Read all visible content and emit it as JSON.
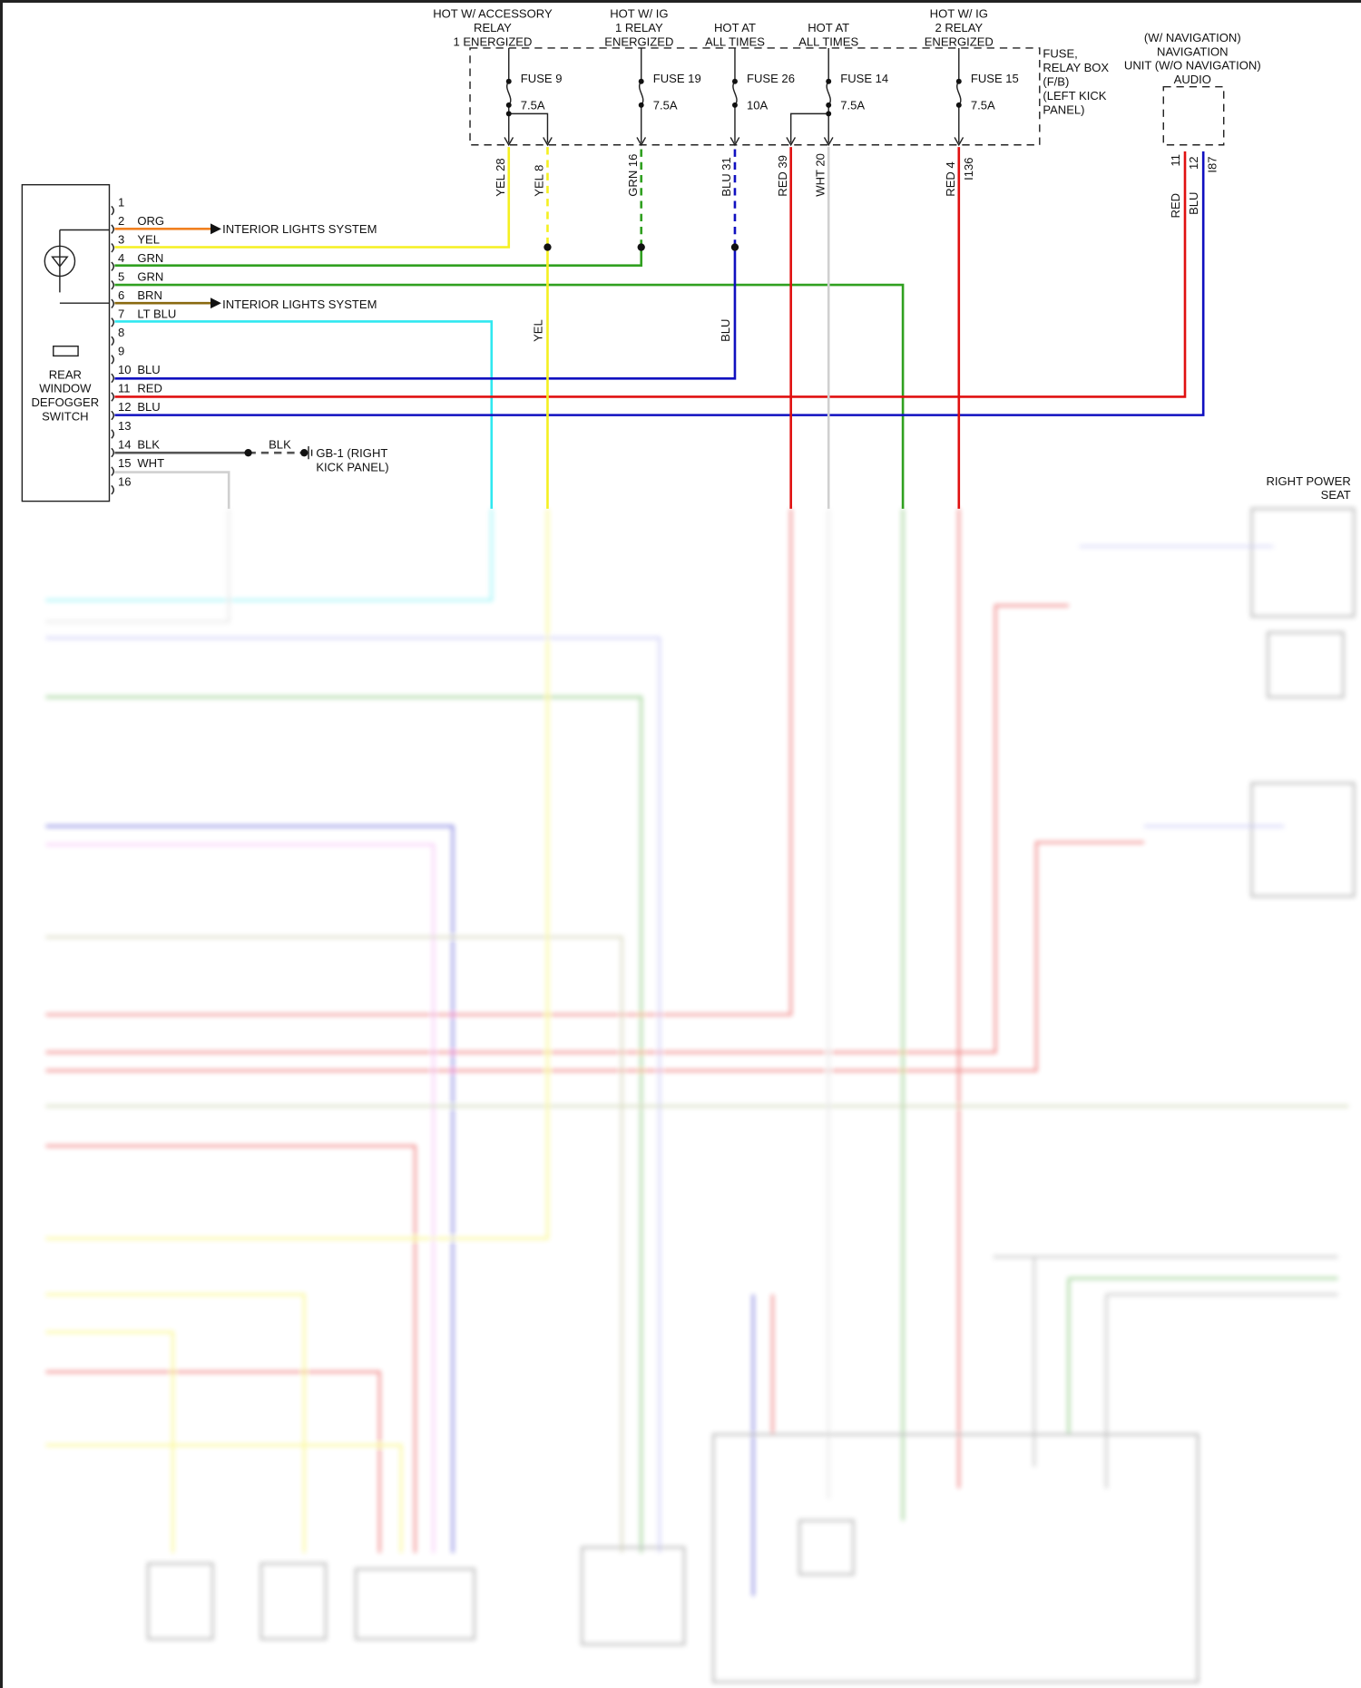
{
  "fuse_box": {
    "label": [
      "FUSE,",
      "RELAY BOX",
      "(F/B)",
      "(LEFT KICK",
      "PANEL)"
    ],
    "sources": [
      {
        "lines": [
          "HOT W/ ACCESSORY",
          "RELAY",
          "1 ENERGIZED"
        ],
        "fuse": "FUSE 9",
        "rating": "7.5A"
      },
      {
        "lines": [
          "HOT W/ IG",
          "1 RELAY",
          "ENERGIZED"
        ],
        "fuse": "FUSE 19",
        "rating": "7.5A"
      },
      {
        "lines": [
          "HOT AT",
          "ALL TIMES"
        ],
        "fuse": "FUSE 26",
        "rating": "10A"
      },
      {
        "lines": [
          "HOT AT",
          "ALL TIMES"
        ],
        "fuse": "FUSE 14",
        "rating": "7.5A"
      },
      {
        "lines": [
          "HOT W/ IG",
          "2 RELAY",
          "ENERGIZED"
        ],
        "fuse": "FUSE 15",
        "rating": "7.5A"
      }
    ],
    "pins": [
      "YEL 28",
      "YEL  8",
      "GRN 16",
      "BLU 31",
      "RED 39",
      "WHT 20",
      "RED  4"
    ],
    "connector": "I136"
  },
  "nav_unit": {
    "lines": [
      "(W/ NAVIGATION)",
      "NAVIGATION",
      "UNIT (W/O NAVIGATION)",
      "AUDIO"
    ],
    "pins": [
      "11",
      "12"
    ],
    "connector": "I87",
    "wire_colors": [
      "RED",
      "BLU"
    ]
  },
  "switch": {
    "name": [
      "REAR",
      "WINDOW",
      "DEFOGGER",
      "SWITCH"
    ],
    "pins": [
      {
        "n": "1",
        "c": ""
      },
      {
        "n": "2",
        "c": "ORG"
      },
      {
        "n": "3",
        "c": "YEL"
      },
      {
        "n": "4",
        "c": "GRN"
      },
      {
        "n": "5",
        "c": "GRN"
      },
      {
        "n": "6",
        "c": "BRN"
      },
      {
        "n": "7",
        "c": "LT BLU"
      },
      {
        "n": "8",
        "c": ""
      },
      {
        "n": "9",
        "c": ""
      },
      {
        "n": "10",
        "c": "BLU"
      },
      {
        "n": "11",
        "c": "RED"
      },
      {
        "n": "12",
        "c": "BLU"
      },
      {
        "n": "13",
        "c": ""
      },
      {
        "n": "14",
        "c": "BLK"
      },
      {
        "n": "15",
        "c": "WHT"
      },
      {
        "n": "16",
        "c": ""
      }
    ]
  },
  "annotations": {
    "interior_lights_1": "INTERIOR LIGHTS SYSTEM",
    "interior_lights_2": "INTERIOR LIGHTS SYSTEM",
    "ground_wire": "BLK",
    "ground_label": [
      "GB-1 (RIGHT",
      "KICK PANEL)"
    ],
    "yel_wire": "YEL",
    "blu_wire": "BLU",
    "right_power_seat": [
      "RIGHT POWER",
      "SEAT"
    ]
  },
  "colors": {
    "ORG": "#f08020",
    "YEL": "#f5f020",
    "GRN": "#30a020",
    "BRN": "#8a6a10",
    "LTBLU": "#30e8f0",
    "BLU": "#1010c0",
    "RED": "#e01010",
    "WHT": "#d0d0d0",
    "BLK": "#555555",
    "PNK": "#f090f0"
  }
}
